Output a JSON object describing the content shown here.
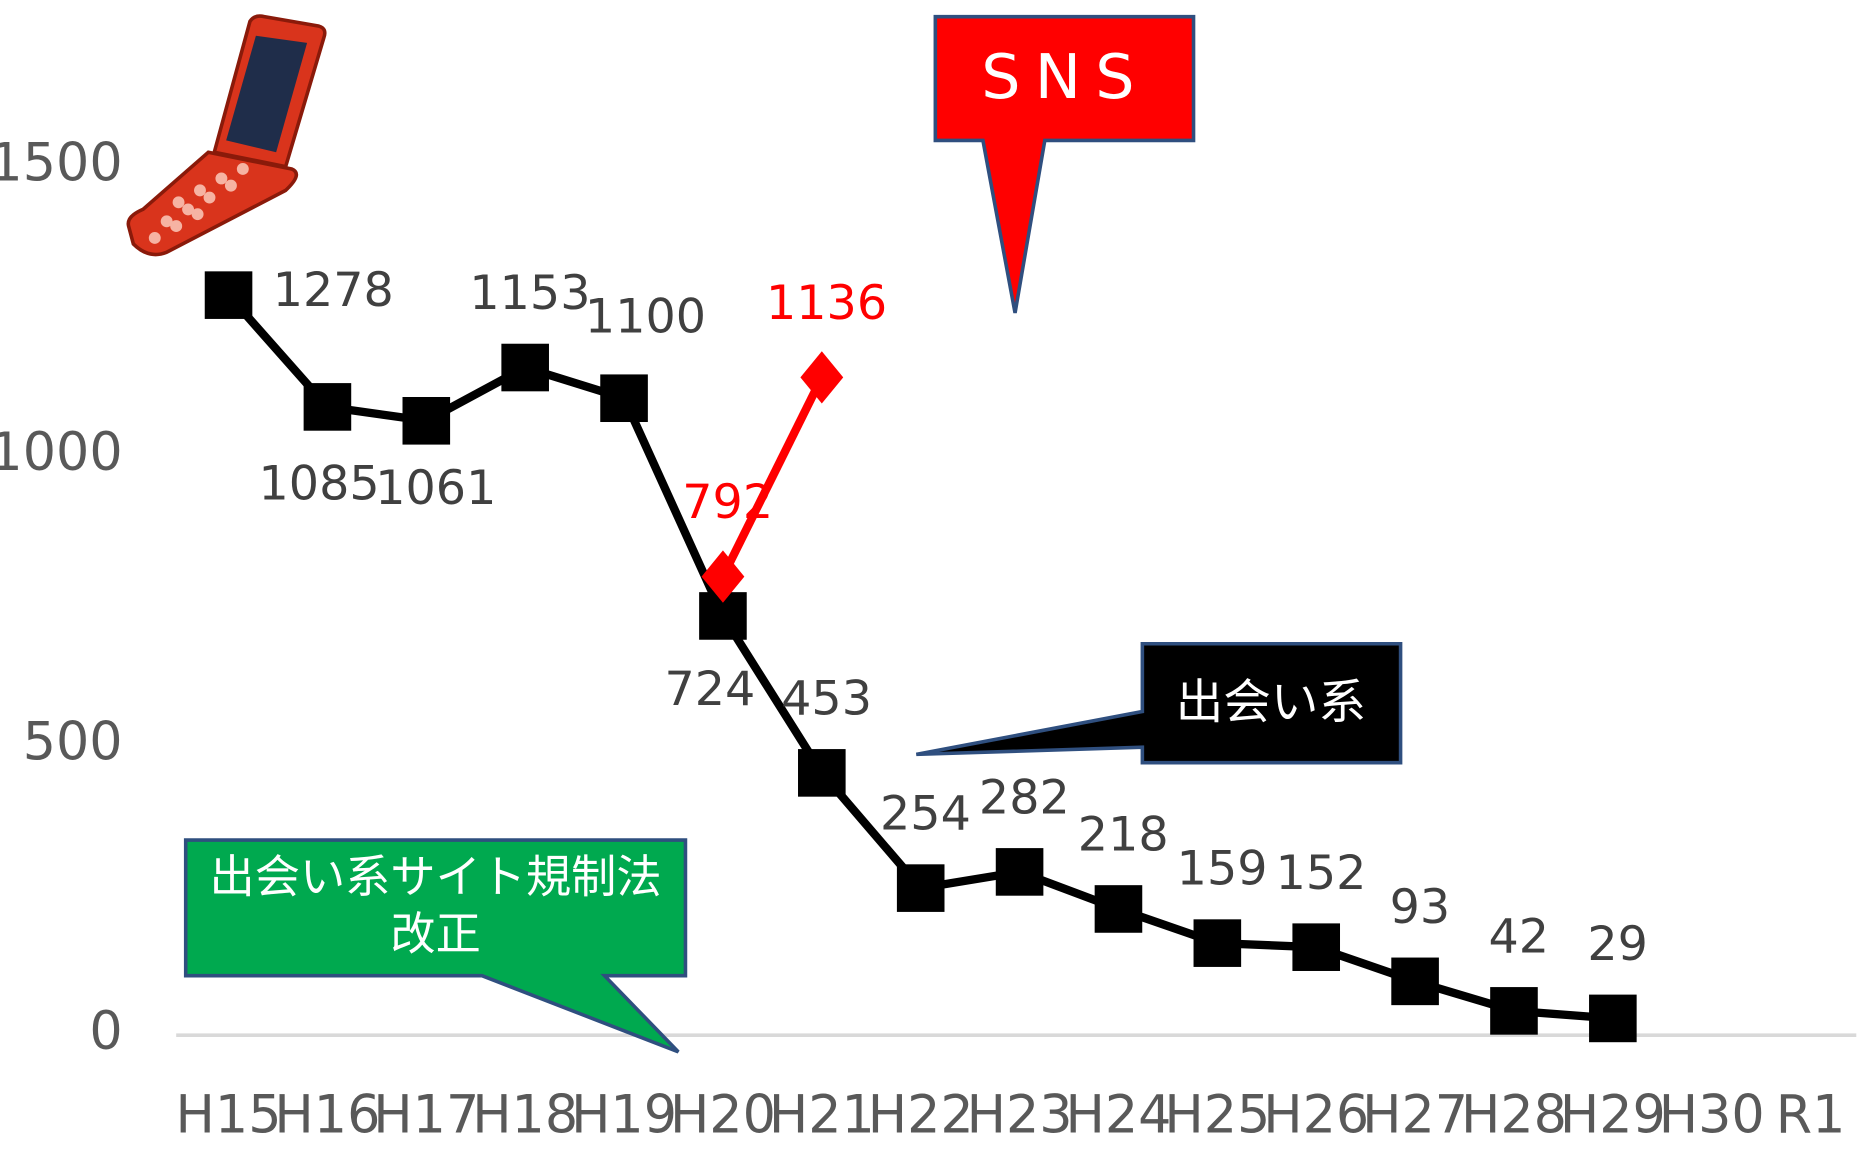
{
  "chart_data": {
    "type": "line",
    "categories": [
      "H15",
      "H16",
      "H17",
      "H18",
      "H19",
      "H20",
      "H21",
      "H22",
      "H23",
      "H24",
      "H25",
      "H26",
      "H27",
      "H28",
      "H29",
      "H30",
      "R1"
    ],
    "series": [
      {
        "color": "#000000",
        "marker": "square",
        "values": [
          1278,
          1085,
          1061,
          1153,
          1100,
          724,
          453,
          254,
          282,
          218,
          159,
          152,
          93,
          42,
          29,
          null,
          null
        ]
      },
      {
        "color": "#ff0000",
        "marker": "diamond",
        "values": [
          null,
          null,
          null,
          null,
          null,
          792,
          1136,
          null,
          null,
          null,
          null,
          null,
          null,
          null,
          null,
          null,
          null
        ]
      }
    ],
    "ylim": [
      0,
      1500
    ],
    "yticks": [
      0,
      500,
      1000,
      1500
    ],
    "grid": false,
    "annotations": [
      "SNS",
      "出会い系",
      "出会い系サイト規制法",
      "改正"
    ]
  }
}
